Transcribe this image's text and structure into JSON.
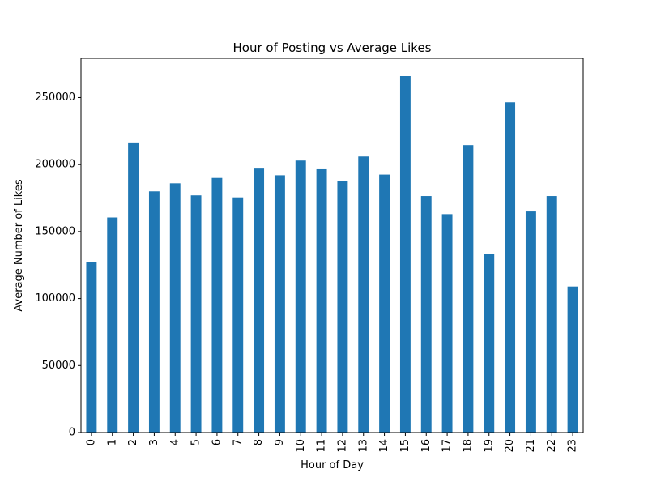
{
  "chart_data": {
    "type": "bar",
    "title": "Hour of Posting vs Average Likes",
    "xlabel": "Hour of Day",
    "ylabel": "Average Number of Likes",
    "categories": [
      "0",
      "1",
      "2",
      "3",
      "4",
      "5",
      "6",
      "7",
      "8",
      "9",
      "10",
      "11",
      "12",
      "13",
      "14",
      "15",
      "16",
      "17",
      "18",
      "19",
      "20",
      "21",
      "22",
      "23"
    ],
    "values": [
      127000,
      160500,
      216500,
      180000,
      186000,
      177000,
      190000,
      175500,
      197000,
      192000,
      203000,
      196500,
      187500,
      206000,
      192500,
      266000,
      176500,
      163000,
      214500,
      133000,
      246500,
      165000,
      176500,
      109000
    ],
    "ylim": [
      0,
      279300
    ],
    "yticks": [
      0,
      50000,
      100000,
      150000,
      200000,
      250000
    ],
    "grid": false,
    "legend": "none",
    "bar_color": "#1f77b4"
  }
}
